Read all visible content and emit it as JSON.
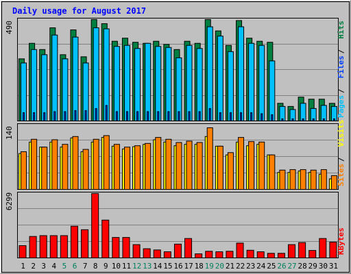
{
  "title": "Daily usage for August 2017",
  "colors": {
    "background": "#c0c0c0",
    "panel": "#c0c0c0",
    "title": "#0000ff",
    "hits": "#008040",
    "files": "#00c0ff",
    "pages": "#0040ff",
    "visits": "#ffff00",
    "sites": "#ff8000",
    "kbytes": "#ff0000",
    "weekend_day": "#00805c",
    "weekday": "#000000"
  },
  "chart_data": [
    {
      "type": "bar",
      "panel": "hits-files-pages",
      "ymax_label": "490",
      "ylim": [
        0,
        490
      ],
      "legend": [
        "Pages",
        "Files",
        "Hits"
      ],
      "categories": [
        "1",
        "2",
        "3",
        "4",
        "5",
        "6",
        "7",
        "8",
        "9",
        "10",
        "11",
        "12",
        "13",
        "14",
        "15",
        "16",
        "17",
        "18",
        "19",
        "20",
        "21",
        "22",
        "23",
        "24",
        "25",
        "26",
        "27",
        "28",
        "29",
        "30",
        "31"
      ],
      "weekend_days": [
        "5",
        "6",
        "12",
        "13",
        "19",
        "20",
        "26",
        "27"
      ],
      "series": [
        {
          "name": "Hits",
          "values": [
            300,
            375,
            345,
            450,
            320,
            440,
            310,
            490,
            470,
            385,
            400,
            380,
            375,
            385,
            370,
            345,
            385,
            375,
            490,
            435,
            365,
            485,
            400,
            385,
            380,
            85,
            70,
            115,
            105,
            105,
            85
          ]
        },
        {
          "name": "Files",
          "values": [
            280,
            345,
            320,
            415,
            300,
            405,
            280,
            450,
            445,
            360,
            365,
            350,
            375,
            360,
            355,
            305,
            365,
            350,
            455,
            410,
            335,
            455,
            375,
            365,
            290,
            70,
            55,
            85,
            60,
            75,
            70
          ]
        },
        {
          "name": "Pages",
          "values": [
            40,
            40,
            40,
            45,
            45,
            50,
            50,
            60,
            75,
            45,
            45,
            45,
            45,
            45,
            45,
            45,
            45,
            45,
            60,
            40,
            40,
            40,
            40,
            35,
            30,
            10,
            10,
            10,
            10,
            10,
            10
          ]
        }
      ]
    },
    {
      "type": "bar",
      "panel": "visits-sites",
      "ymax_label": "140",
      "ylim": [
        0,
        140
      ],
      "legend": [
        "Sites",
        "Visits"
      ],
      "categories": [
        "1",
        "2",
        "3",
        "4",
        "5",
        "6",
        "7",
        "8",
        "9",
        "10",
        "11",
        "12",
        "13",
        "14",
        "15",
        "16",
        "17",
        "18",
        "19",
        "20",
        "21",
        "22",
        "23",
        "24",
        "25",
        "26",
        "27",
        "28",
        "29",
        "30",
        "31"
      ],
      "series": [
        {
          "name": "Visits",
          "values": [
            78,
            103,
            92,
            103,
            92,
            112,
            82,
            103,
            113,
            94,
            88,
            93,
            98,
            108,
            103,
            95,
            98,
            98,
            115,
            94,
            75,
            103,
            95,
            98,
            75,
            37,
            37,
            40,
            37,
            33,
            23
          ]
        },
        {
          "name": "Sites",
          "values": [
            82,
            109,
            92,
            108,
            98,
            115,
            87,
            109,
            117,
            98,
            92,
            95,
            100,
            113,
            109,
            102,
            105,
            102,
            134,
            94,
            80,
            113,
            104,
            103,
            75,
            42,
            43,
            43,
            42,
            43,
            30
          ]
        }
      ]
    },
    {
      "type": "bar",
      "panel": "kbytes",
      "ymax_label": "6299",
      "ylim": [
        0,
        6299
      ],
      "legend": [
        "KBytes"
      ],
      "categories": [
        "1",
        "2",
        "3",
        "4",
        "5",
        "6",
        "7",
        "8",
        "9",
        "10",
        "11",
        "12",
        "13",
        "14",
        "15",
        "16",
        "17",
        "18",
        "19",
        "20",
        "21",
        "22",
        "23",
        "24",
        "25",
        "26",
        "27",
        "28",
        "29",
        "30",
        "31"
      ],
      "series": [
        {
          "name": "KBytes",
          "values": [
            1200,
            2100,
            2180,
            2180,
            2180,
            3100,
            2760,
            6299,
            3700,
            2000,
            2000,
            1300,
            900,
            780,
            600,
            1350,
            1900,
            400,
            650,
            600,
            650,
            1450,
            750,
            600,
            450,
            450,
            1300,
            1500,
            730,
            1900,
            1550
          ]
        }
      ]
    }
  ]
}
